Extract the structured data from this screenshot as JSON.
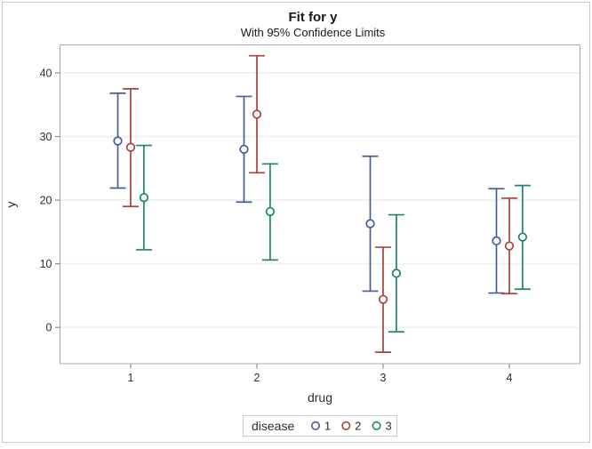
{
  "figure": {
    "title": "Fit for y",
    "subtitle": "With 95% Confidence Limits"
  },
  "chart_data": {
    "type": "scatter",
    "subtype": "dodged-point-estimates-with-error-bars",
    "title": "Fit for y",
    "subtitle": "With 95% Confidence Limits",
    "xlabel": "drug",
    "ylabel": "y",
    "xlim": [
      0.44,
      4.56
    ],
    "ylim": [
      -5.7,
      44.4
    ],
    "x_ticks": [
      "1",
      "2",
      "3",
      "4"
    ],
    "y_ticks": [
      0,
      10,
      20,
      30,
      40
    ],
    "grid": "horizontal-only",
    "error_bar_meaning": "95% confidence limits",
    "legend": {
      "title": "disease",
      "position": "bottom-center",
      "entries": [
        {
          "label": "1",
          "color": "#4C5C99"
        },
        {
          "label": "2",
          "color": "#A8423A"
        },
        {
          "label": "3",
          "color": "#1E8470"
        }
      ]
    },
    "series": [
      {
        "name": "1",
        "color": "#4C5C99",
        "dodge": -0.102,
        "points": [
          {
            "x": 1,
            "y": 29.3,
            "lo": 21.9,
            "hi": 36.8
          },
          {
            "x": 2,
            "y": 28.0,
            "lo": 19.7,
            "hi": 36.3
          },
          {
            "x": 3,
            "y": 16.3,
            "lo": 5.7,
            "hi": 26.9
          },
          {
            "x": 4,
            "y": 13.6,
            "lo": 5.4,
            "hi": 21.8
          }
        ]
      },
      {
        "name": "2",
        "color": "#A8423A",
        "dodge": 0,
        "points": [
          {
            "x": 1,
            "y": 28.3,
            "lo": 19.0,
            "hi": 37.5
          },
          {
            "x": 2,
            "y": 33.5,
            "lo": 24.3,
            "hi": 42.7
          },
          {
            "x": 3,
            "y": 4.4,
            "lo": -3.9,
            "hi": 12.6
          },
          {
            "x": 4,
            "y": 12.8,
            "lo": 5.3,
            "hi": 20.3
          }
        ]
      },
      {
        "name": "3",
        "color": "#1E8470",
        "dodge": 0.105,
        "points": [
          {
            "x": 1,
            "y": 20.4,
            "lo": 12.2,
            "hi": 28.6
          },
          {
            "x": 2,
            "y": 18.2,
            "lo": 10.6,
            "hi": 25.7
          },
          {
            "x": 3,
            "y": 8.5,
            "lo": -0.7,
            "hi": 17.7
          },
          {
            "x": 4,
            "y": 14.2,
            "lo": 6.0,
            "hi": 22.3
          }
        ]
      }
    ],
    "colors": {
      "grid": "#F1F1F1",
      "wall_border": "#A9ACAE",
      "tick": "#8C8F91",
      "text": "#2E2E2E",
      "figure_border": "#C9CBCC",
      "marker_fill": "#FFFFFF",
      "background": "#FFFFFF"
    }
  }
}
